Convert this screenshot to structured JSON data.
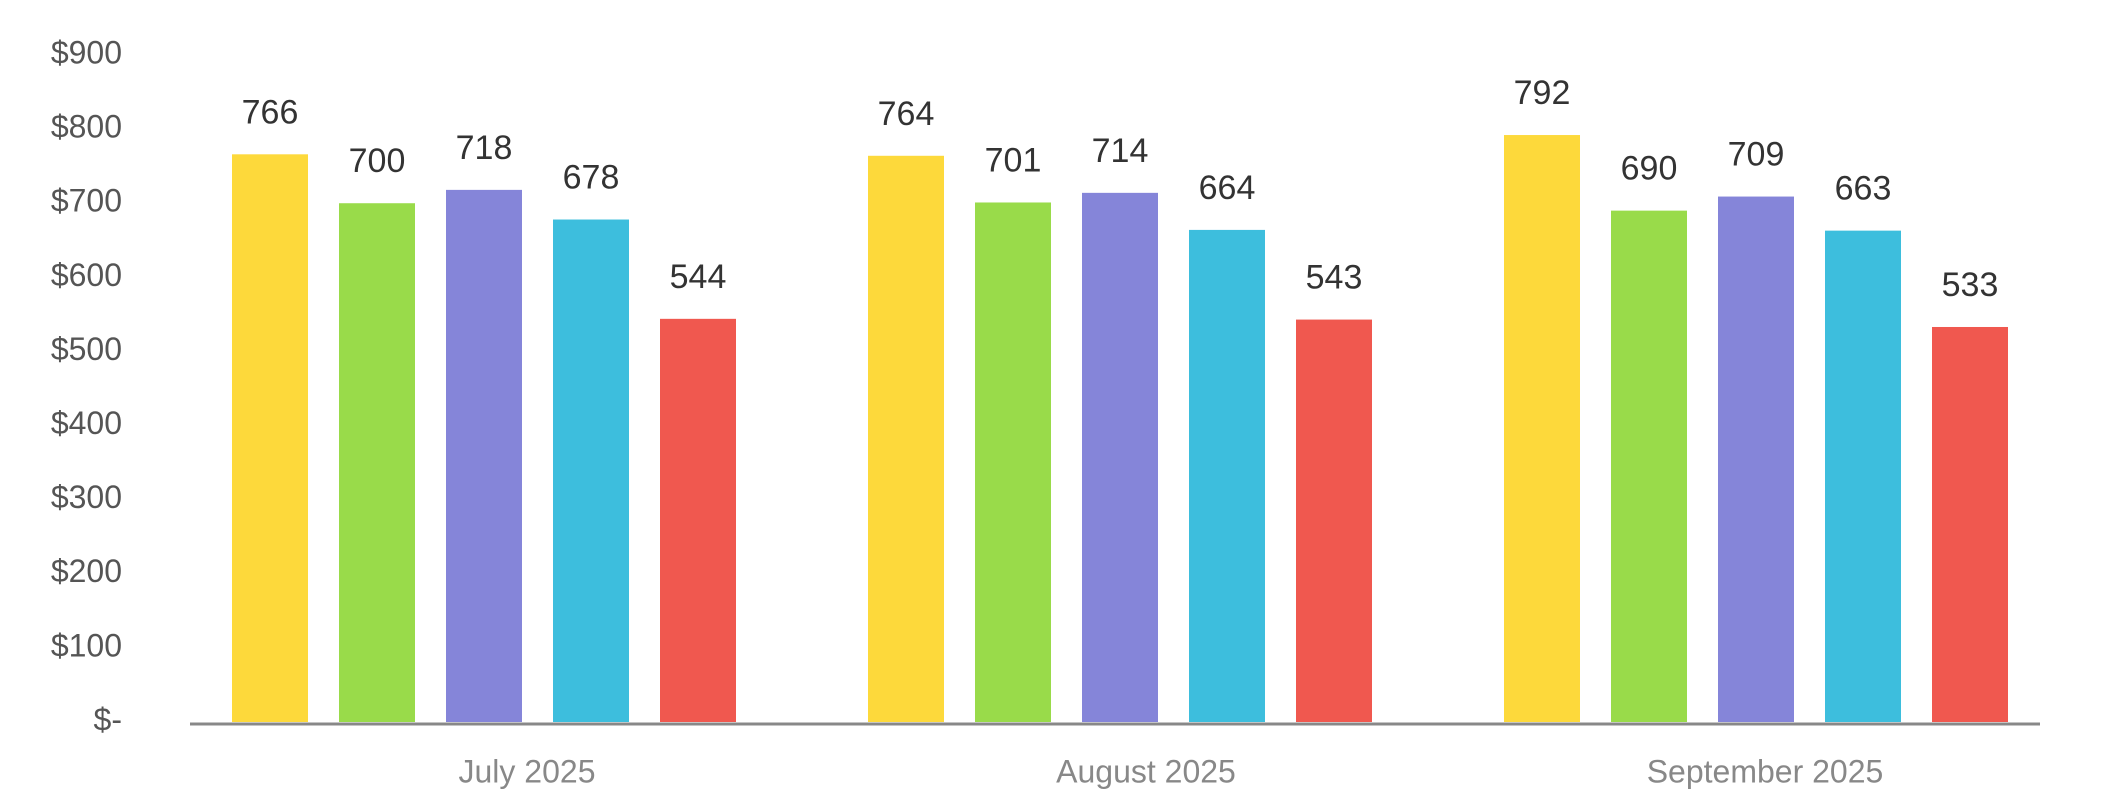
{
  "chart_data": {
    "type": "bar",
    "categories": [
      "July 2025",
      "August 2025",
      "September 2025"
    ],
    "series": [
      {
        "color": "#FDD93B",
        "values": [
          766,
          764,
          792
        ]
      },
      {
        "color": "#99DB4A",
        "values": [
          700,
          701,
          690
        ]
      },
      {
        "color": "#8585D9",
        "values": [
          718,
          714,
          709
        ]
      },
      {
        "color": "#3DBEDD",
        "values": [
          678,
          664,
          663
        ]
      },
      {
        "color": "#F0584F",
        "values": [
          544,
          543,
          533
        ]
      }
    ],
    "ylim": [
      0,
      900
    ],
    "yticks": [
      {
        "value": 0,
        "label": "$-"
      },
      {
        "value": 100,
        "label": "$100"
      },
      {
        "value": 200,
        "label": "$200"
      },
      {
        "value": 300,
        "label": "$300"
      },
      {
        "value": 400,
        "label": "$400"
      },
      {
        "value": 500,
        "label": "$500"
      },
      {
        "value": 600,
        "label": "$600"
      },
      {
        "value": 700,
        "label": "$700"
      },
      {
        "value": 800,
        "label": "$800"
      },
      {
        "value": 900,
        "label": "$900"
      }
    ],
    "grid": false
  }
}
